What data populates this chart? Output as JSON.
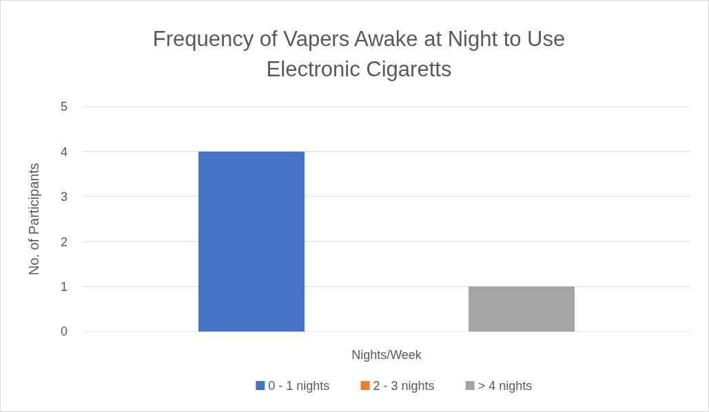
{
  "chart_data": {
    "type": "bar",
    "title": "Frequency of Vapers Awake at Night to Use Electronic Cigaretts",
    "xlabel": "Nights/Week",
    "ylabel": "No. of Participants",
    "categories": [
      null
    ],
    "series": [
      {
        "name": "0 - 1 nights",
        "color": "#4472c4",
        "values": [
          4
        ]
      },
      {
        "name": "2 - 3 nights",
        "color": "#ed7d31",
        "values": [
          0
        ]
      },
      {
        "name": "> 4 nights",
        "color": "#a5a5a5",
        "values": [
          1
        ]
      }
    ],
    "ylim": [
      0,
      5
    ],
    "yticks": [
      0,
      1,
      2,
      3,
      4,
      5
    ],
    "grid": "y",
    "legend": "bottom"
  }
}
